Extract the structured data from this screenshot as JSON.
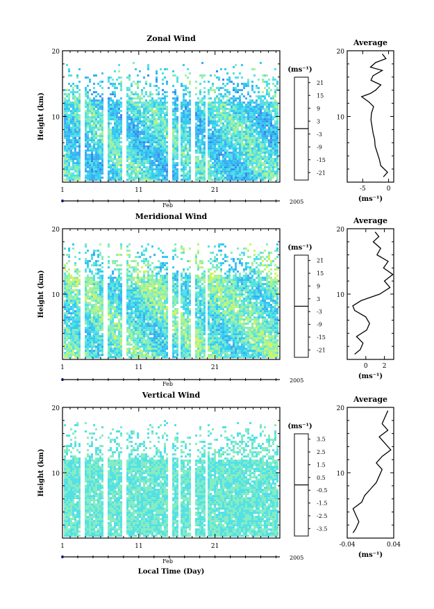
{
  "chart_data": [
    {
      "type": "heatmap",
      "title": "Zonal Wind",
      "ylabel": "Height (km)",
      "ylim": [
        0,
        20
      ],
      "y_ticks": [
        "10",
        "20"
      ],
      "x_ticks": [
        "1",
        "11",
        "21"
      ],
      "x_month": "Feb",
      "x_year": "2005",
      "unit_label": "(ms⁻¹)",
      "colorbar_ticks": [
        "21",
        "15",
        "9",
        "3",
        "-3",
        "-9",
        "-15",
        "-21"
      ],
      "data_ceiling_km": 18.0,
      "dense_below_km": 12.0,
      "gaps_days": [
        3.5,
        6.5,
        9.0,
        15.0,
        16.2,
        18.0,
        19.8
      ],
      "mean_value": -2.5,
      "value_range": [
        -21,
        21
      ],
      "average_profile": {
        "title": "Average",
        "xlabel": "(ms⁻¹)",
        "x_ticks": [
          "-5",
          "0"
        ],
        "xlim": [
          -8,
          1
        ],
        "y_ticks": [
          "10",
          "20"
        ],
        "heights_km": [
          0.8,
          1.5,
          2.5,
          3.5,
          4.5,
          5.5,
          6.5,
          7.5,
          8.5,
          9.5,
          10.5,
          11.5,
          12.2,
          13.0,
          13.5,
          14.0,
          14.8,
          15.5,
          16.2,
          17.0,
          17.5,
          18.2,
          18.8,
          19.5
        ],
        "values": [
          -1.0,
          -0.2,
          -1.5,
          -1.8,
          -2.2,
          -2.6,
          -2.7,
          -3.0,
          -3.2,
          -3.4,
          -3.3,
          -2.9,
          -3.8,
          -5.2,
          -3.5,
          -2.5,
          -1.5,
          -3.4,
          -3.0,
          -1.2,
          -3.5,
          -2.5,
          -0.5,
          -1.2
        ]
      }
    },
    {
      "type": "heatmap",
      "title": "Meridional Wind",
      "ylabel": "Height (km)",
      "ylim": [
        0,
        20
      ],
      "y_ticks": [
        "10",
        "20"
      ],
      "x_ticks": [
        "1",
        "11",
        "21"
      ],
      "x_month": "Feb",
      "x_year": "2005",
      "unit_label": "(ms⁻¹)",
      "colorbar_ticks": [
        "21",
        "15",
        "9",
        "3",
        "-3",
        "-9",
        "-15",
        "-21"
      ],
      "data_ceiling_km": 17.5,
      "dense_below_km": 12.5,
      "gaps_days": [
        3.5,
        6.5,
        9.0,
        15.0,
        16.2,
        18.0,
        19.8
      ],
      "mean_value": 0.0,
      "value_range": [
        -21,
        21
      ],
      "average_profile": {
        "title": "Average",
        "xlabel": "(ms⁻¹)",
        "x_ticks": [
          "0",
          "2"
        ],
        "xlim": [
          -2,
          3
        ],
        "y_ticks": [
          "10",
          "20"
        ],
        "heights_km": [
          0.8,
          1.5,
          2.5,
          3.5,
          4.5,
          5.5,
          6.5,
          7.5,
          8.2,
          9.0,
          10.0,
          11.0,
          12.0,
          13.0,
          14.0,
          15.0,
          16.0,
          17.0,
          18.0,
          18.8,
          19.5
        ],
        "values": [
          -1.2,
          -0.6,
          -0.3,
          -1.0,
          0.1,
          0.4,
          0.0,
          -1.2,
          -1.4,
          -0.5,
          1.5,
          2.6,
          2.0,
          2.9,
          1.9,
          2.4,
          1.2,
          1.6,
          0.8,
          1.4,
          1.0
        ]
      }
    },
    {
      "type": "heatmap",
      "title": "Vertical Wind",
      "ylabel": "Height (km)",
      "ylim": [
        0,
        20
      ],
      "y_ticks": [
        "10",
        "20"
      ],
      "x_ticks": [
        "1",
        "11",
        "21"
      ],
      "x_month": "Feb",
      "x_year": "2005",
      "xlabel": "Local Time (Day)",
      "unit_label": "(ms⁻¹)",
      "colorbar_ticks": [
        "3.5",
        "2.5",
        "1.5",
        "0.5",
        "-0.5",
        "-1.5",
        "-2.5",
        "-3.5"
      ],
      "data_ceiling_km": 19.5,
      "dense_below_km": 11.8,
      "gaps_days": [
        3.5,
        6.5,
        9.0,
        15.0,
        16.2,
        18.0,
        19.8
      ],
      "mean_value": 0.0,
      "value_range": [
        -3.5,
        3.5
      ],
      "average_profile": {
        "title": "Average",
        "xlabel": "(ms⁻¹)",
        "x_ticks": [
          "-0.04",
          "0.04"
        ],
        "xlim": [
          -0.04,
          0.04
        ],
        "y_ticks": [
          "10",
          "20"
        ],
        "heights_km": [
          0.8,
          1.5,
          2.5,
          3.5,
          4.5,
          5.5,
          6.5,
          7.5,
          8.5,
          9.5,
          10.5,
          11.5,
          12.5,
          13.5,
          14.5,
          15.5,
          16.5,
          17.5,
          18.5,
          19.5
        ],
        "values": [
          -0.03,
          -0.025,
          -0.02,
          -0.025,
          -0.03,
          -0.015,
          -0.01,
          0.0,
          0.01,
          0.015,
          0.02,
          0.01,
          0.02,
          0.035,
          0.025,
          0.015,
          0.03,
          0.02,
          0.025,
          0.03
        ]
      }
    }
  ]
}
